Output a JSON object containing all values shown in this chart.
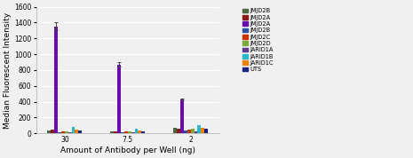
{
  "xlabel": "Amount of Antibody per Well (ng)",
  "ylabel": "Median Fluorescent Intensity",
  "groups": [
    "30",
    "7.5",
    "2"
  ],
  "series": [
    {
      "name": "JMJD2B",
      "color": "#4a6741",
      "values": [
        40,
        28,
        65
      ]
    },
    {
      "name": "JMJD2A",
      "color": "#8b1a1a",
      "values": [
        45,
        28,
        55
      ]
    },
    {
      "name": "JMJD2A",
      "color": "#6a0dad",
      "values": [
        1355,
        870,
        430
      ]
    },
    {
      "name": "JMJD2B",
      "color": "#2a52a0",
      "values": [
        18,
        12,
        35
      ]
    },
    {
      "name": "JMJD2C",
      "color": "#cc3300",
      "values": [
        28,
        22,
        50
      ]
    },
    {
      "name": "JMJD2D",
      "color": "#7aab3a",
      "values": [
        30,
        22,
        55
      ]
    },
    {
      "name": "JARID1A",
      "color": "#5c3a8c",
      "values": [
        16,
        10,
        28
      ]
    },
    {
      "name": "JARID1B",
      "color": "#29b8c8",
      "values": [
        82,
        58,
        100
      ]
    },
    {
      "name": "JARID1C",
      "color": "#e8820a",
      "values": [
        48,
        38,
        72
      ]
    },
    {
      "name": "UTS",
      "color": "#1a237e",
      "values": [
        35,
        25,
        60
      ]
    }
  ],
  "error_bars_idx": 2,
  "error_bars_vals": [
    45,
    30,
    12
  ],
  "ylim": [
    0,
    1600
  ],
  "yticks": [
    0,
    200,
    400,
    600,
    800,
    1000,
    1200,
    1400,
    1600
  ],
  "legend_fontsize": 4.8,
  "axis_fontsize": 6.5,
  "tick_fontsize": 5.5,
  "background_color": "#f0f0f0",
  "grid_color": "#ffffff"
}
